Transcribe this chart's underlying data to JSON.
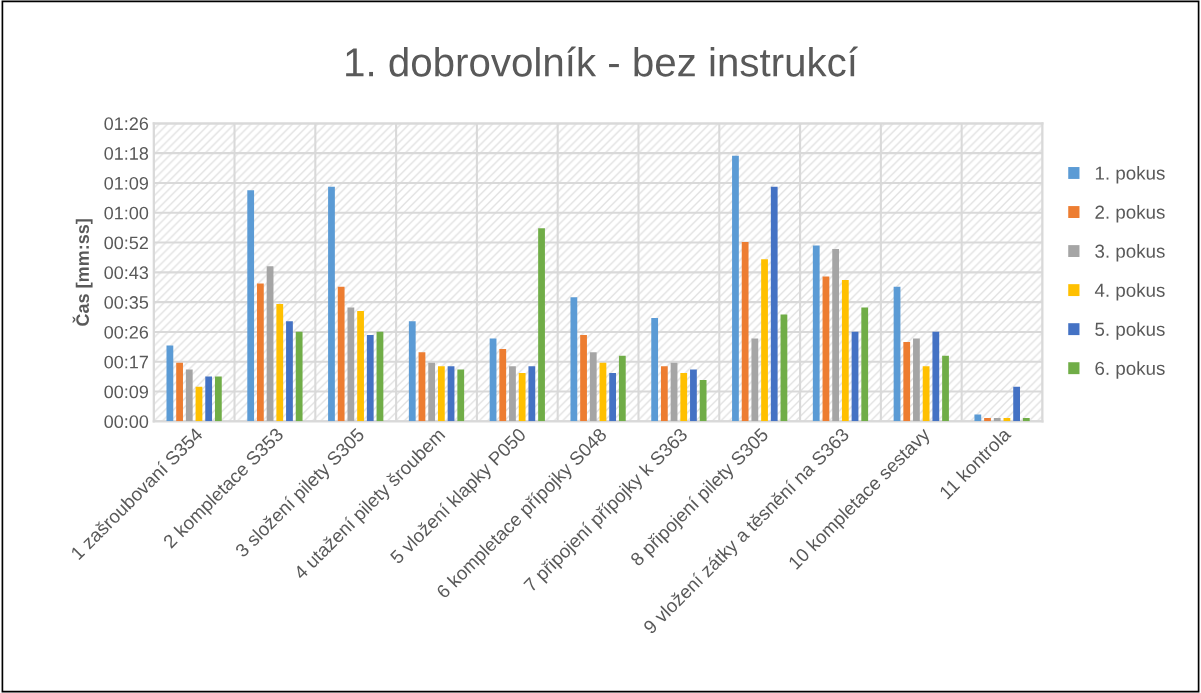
{
  "chart_data": {
    "type": "bar",
    "title": "1. dobrovolník - bez instrukcí",
    "ylabel": "Čas [mm:ss]",
    "categories": [
      "1 zašroubovaní S354",
      "2 kompletace S353",
      "3 složení pilety S305",
      "4 utažení pilety šroubem",
      "5 vložení klapky P050",
      "6 kompletace přípojky S048",
      "7 připojení přípojky k S363",
      "8 připojení pilety S305",
      "9 vložení zátky a těsnění na S363",
      "10 kompletace sestavy",
      "11 kontrola"
    ],
    "series": [
      {
        "name": "1. pokus",
        "color": "#5b9bd5",
        "values": [
          22,
          67,
          68,
          29,
          24,
          36,
          30,
          77,
          51,
          39,
          2
        ]
      },
      {
        "name": "2. pokus",
        "color": "#ed7d31",
        "values": [
          17,
          40,
          39,
          20,
          21,
          25,
          16,
          52,
          42,
          23,
          1
        ]
      },
      {
        "name": "3. pokus",
        "color": "#a5a5a5",
        "values": [
          15,
          45,
          33,
          17,
          16,
          20,
          17,
          24,
          50,
          24,
          1
        ]
      },
      {
        "name": "4. pokus",
        "color": "#ffc000",
        "values": [
          10,
          34,
          32,
          16,
          14,
          17,
          14,
          47,
          41,
          16,
          1
        ]
      },
      {
        "name": "5. pokus",
        "color": "#4472c4",
        "values": [
          13,
          29,
          25,
          16,
          16,
          14,
          15,
          68,
          26,
          26,
          10
        ]
      },
      {
        "name": "6. pokus",
        "color": "#70ad47",
        "values": [
          13,
          26,
          26,
          15,
          56,
          19,
          12,
          31,
          33,
          19,
          1
        ]
      }
    ],
    "ylim": [
      0,
      86.4
    ],
    "yticks": [
      {
        "value": 0,
        "label": "00:00"
      },
      {
        "value": 8.64,
        "label": "00:09"
      },
      {
        "value": 17.28,
        "label": "00:17"
      },
      {
        "value": 25.92,
        "label": "00:26"
      },
      {
        "value": 34.56,
        "label": "00:35"
      },
      {
        "value": 43.2,
        "label": "00:43"
      },
      {
        "value": 51.84,
        "label": "00:52"
      },
      {
        "value": 60.48,
        "label": "01:00"
      },
      {
        "value": 69.12,
        "label": "01:09"
      },
      {
        "value": 77.76,
        "label": "01:18"
      },
      {
        "value": 86.4,
        "label": "01:26"
      }
    ],
    "grid": true,
    "legend": "right"
  }
}
